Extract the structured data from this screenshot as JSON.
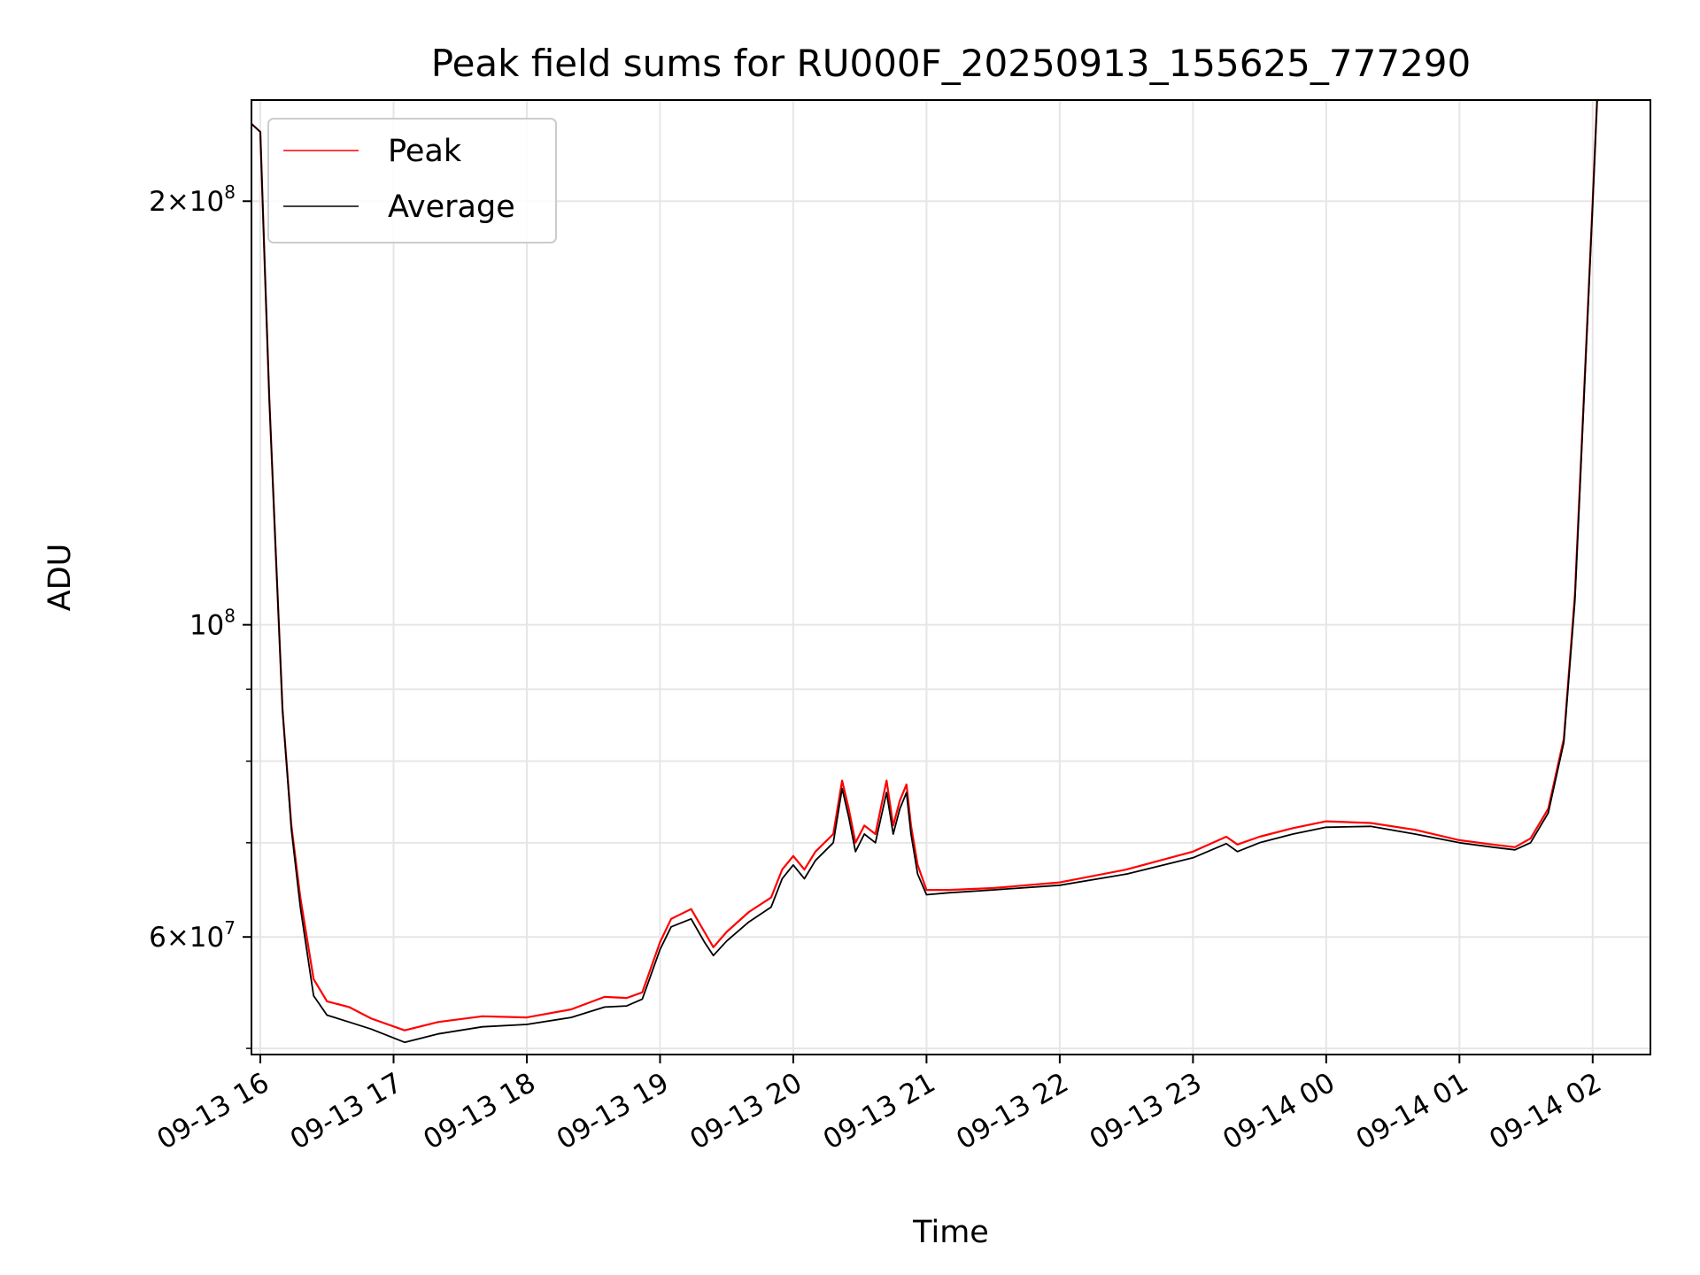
{
  "chart_data": {
    "type": "line",
    "title": "Peak field sums for RU000F_20250913_155625_777290",
    "xlabel": "Time",
    "ylabel": "ADU",
    "yscale": "log",
    "ylim": [
      49500000,
      236000000
    ],
    "xlim": [
      "2025-09-13 15:56",
      "2025-09-14 02:26"
    ],
    "grid": true,
    "legend_position": "upper-left",
    "x_ticks": [
      "09-13 16",
      "09-13 17",
      "09-13 18",
      "09-13 19",
      "09-13 20",
      "09-13 21",
      "09-13 22",
      "09-13 23",
      "09-14 00",
      "09-14 01",
      "09-14 02"
    ],
    "x_tick_times": [
      "2025-09-13 16:00",
      "2025-09-13 17:00",
      "2025-09-13 18:00",
      "2025-09-13 19:00",
      "2025-09-13 20:00",
      "2025-09-13 21:00",
      "2025-09-13 22:00",
      "2025-09-13 23:00",
      "2025-09-14 00:00",
      "2025-09-14 01:00",
      "2025-09-14 02:00"
    ],
    "y_ticks": [
      {
        "value": 60000000,
        "base": "6",
        "exp": "7"
      },
      {
        "value": 100000000,
        "base": "",
        "exp": "8"
      },
      {
        "value": 200000000,
        "base": "2",
        "exp": "8"
      }
    ],
    "y_minor_ticks": [
      50000000,
      70000000,
      80000000,
      90000000
    ],
    "series": [
      {
        "name": "Peak",
        "color": "#ff0000",
        "points": [
          [
            "2025-09-13 15:56",
            227000000
          ],
          [
            "2025-09-13 16:00",
            224000000
          ],
          [
            "2025-09-13 16:02",
            180000000
          ],
          [
            "2025-09-13 16:04",
            145000000
          ],
          [
            "2025-09-13 16:07",
            112000000
          ],
          [
            "2025-09-13 16:10",
            87000000
          ],
          [
            "2025-09-13 16:14",
            72000000
          ],
          [
            "2025-09-13 16:18",
            64000000
          ],
          [
            "2025-09-13 16:24",
            56000000
          ],
          [
            "2025-09-13 16:30",
            54000000
          ],
          [
            "2025-09-13 16:40",
            53500000
          ],
          [
            "2025-09-13 16:50",
            52500000
          ],
          [
            "2025-09-13 17:05",
            51500000
          ],
          [
            "2025-09-13 17:20",
            52200000
          ],
          [
            "2025-09-13 17:40",
            52700000
          ],
          [
            "2025-09-13 18:00",
            52600000
          ],
          [
            "2025-09-13 18:20",
            53300000
          ],
          [
            "2025-09-13 18:35",
            54400000
          ],
          [
            "2025-09-13 18:45",
            54300000
          ],
          [
            "2025-09-13 18:52",
            54800000
          ],
          [
            "2025-09-13 19:00",
            59500000
          ],
          [
            "2025-09-13 19:05",
            61800000
          ],
          [
            "2025-09-13 19:14",
            62800000
          ],
          [
            "2025-09-13 19:20",
            60500000
          ],
          [
            "2025-09-13 19:24",
            59000000
          ],
          [
            "2025-09-13 19:30",
            60500000
          ],
          [
            "2025-09-13 19:40",
            62500000
          ],
          [
            "2025-09-13 19:50",
            64000000
          ],
          [
            "2025-09-13 19:55",
            67000000
          ],
          [
            "2025-09-13 20:00",
            68500000
          ],
          [
            "2025-09-13 20:05",
            67000000
          ],
          [
            "2025-09-13 20:10",
            69000000
          ],
          [
            "2025-09-13 20:18",
            71000000
          ],
          [
            "2025-09-13 20:22",
            77500000
          ],
          [
            "2025-09-13 20:25",
            74000000
          ],
          [
            "2025-09-13 20:28",
            70000000
          ],
          [
            "2025-09-13 20:32",
            72000000
          ],
          [
            "2025-09-13 20:37",
            71000000
          ],
          [
            "2025-09-13 20:42",
            77500000
          ],
          [
            "2025-09-13 20:45",
            72000000
          ],
          [
            "2025-09-13 20:48",
            75000000
          ],
          [
            "2025-09-13 20:51",
            77000000
          ],
          [
            "2025-09-13 20:53",
            72000000
          ],
          [
            "2025-09-13 20:56",
            67500000
          ],
          [
            "2025-09-13 21:00",
            64800000
          ],
          [
            "2025-09-13 21:10",
            64800000
          ],
          [
            "2025-09-13 21:30",
            65000000
          ],
          [
            "2025-09-13 22:00",
            65600000
          ],
          [
            "2025-09-13 22:30",
            67000000
          ],
          [
            "2025-09-13 23:00",
            69000000
          ],
          [
            "2025-09-13 23:15",
            70700000
          ],
          [
            "2025-09-13 23:20",
            69800000
          ],
          [
            "2025-09-13 23:30",
            70700000
          ],
          [
            "2025-09-13 23:45",
            71700000
          ],
          [
            "2025-09-14 00:00",
            72500000
          ],
          [
            "2025-09-14 00:20",
            72300000
          ],
          [
            "2025-09-14 00:40",
            71500000
          ],
          [
            "2025-09-14 01:00",
            70300000
          ],
          [
            "2025-09-14 01:15",
            69800000
          ],
          [
            "2025-09-14 01:25",
            69500000
          ],
          [
            "2025-09-14 01:32",
            70500000
          ],
          [
            "2025-09-14 01:40",
            74000000
          ],
          [
            "2025-09-14 01:47",
            83000000
          ],
          [
            "2025-09-14 01:52",
            105000000
          ],
          [
            "2025-09-14 01:56",
            145000000
          ],
          [
            "2025-09-14 02:00",
            200000000
          ],
          [
            "2025-09-14 02:02",
            236000000
          ]
        ]
      },
      {
        "name": "Average",
        "color": "#000000",
        "points": [
          [
            "2025-09-13 15:56",
            227000000
          ],
          [
            "2025-09-13 16:00",
            224000000
          ],
          [
            "2025-09-13 16:02",
            180000000
          ],
          [
            "2025-09-13 16:04",
            145000000
          ],
          [
            "2025-09-13 16:07",
            112000000
          ],
          [
            "2025-09-13 16:10",
            87000000
          ],
          [
            "2025-09-13 16:14",
            71500000
          ],
          [
            "2025-09-13 16:18",
            63000000
          ],
          [
            "2025-09-13 16:24",
            54500000
          ],
          [
            "2025-09-13 16:30",
            52800000
          ],
          [
            "2025-09-13 16:40",
            52200000
          ],
          [
            "2025-09-13 16:50",
            51600000
          ],
          [
            "2025-09-13 17:05",
            50500000
          ],
          [
            "2025-09-13 17:20",
            51200000
          ],
          [
            "2025-09-13 17:40",
            51800000
          ],
          [
            "2025-09-13 18:00",
            52000000
          ],
          [
            "2025-09-13 18:20",
            52600000
          ],
          [
            "2025-09-13 18:35",
            53500000
          ],
          [
            "2025-09-13 18:45",
            53600000
          ],
          [
            "2025-09-13 18:52",
            54200000
          ],
          [
            "2025-09-13 19:00",
            58800000
          ],
          [
            "2025-09-13 19:05",
            61000000
          ],
          [
            "2025-09-13 19:14",
            61800000
          ],
          [
            "2025-09-13 19:20",
            59500000
          ],
          [
            "2025-09-13 19:24",
            58200000
          ],
          [
            "2025-09-13 19:30",
            59600000
          ],
          [
            "2025-09-13 19:40",
            61500000
          ],
          [
            "2025-09-13 19:50",
            63000000
          ],
          [
            "2025-09-13 19:55",
            66000000
          ],
          [
            "2025-09-13 20:00",
            67500000
          ],
          [
            "2025-09-13 20:05",
            66000000
          ],
          [
            "2025-09-13 20:10",
            68000000
          ],
          [
            "2025-09-13 20:18",
            70000000
          ],
          [
            "2025-09-13 20:22",
            76500000
          ],
          [
            "2025-09-13 20:25",
            73000000
          ],
          [
            "2025-09-13 20:28",
            69000000
          ],
          [
            "2025-09-13 20:32",
            71000000
          ],
          [
            "2025-09-13 20:37",
            70000000
          ],
          [
            "2025-09-13 20:42",
            76000000
          ],
          [
            "2025-09-13 20:45",
            71000000
          ],
          [
            "2025-09-13 20:48",
            74000000
          ],
          [
            "2025-09-13 20:51",
            76000000
          ],
          [
            "2025-09-13 20:53",
            71000000
          ],
          [
            "2025-09-13 20:56",
            66500000
          ],
          [
            "2025-09-13 21:00",
            64300000
          ],
          [
            "2025-09-13 21:10",
            64500000
          ],
          [
            "2025-09-13 21:30",
            64800000
          ],
          [
            "2025-09-13 22:00",
            65300000
          ],
          [
            "2025-09-13 22:30",
            66500000
          ],
          [
            "2025-09-13 23:00",
            68300000
          ],
          [
            "2025-09-13 23:15",
            69900000
          ],
          [
            "2025-09-13 23:20",
            69000000
          ],
          [
            "2025-09-13 23:30",
            70000000
          ],
          [
            "2025-09-13 23:45",
            71000000
          ],
          [
            "2025-09-14 00:00",
            71800000
          ],
          [
            "2025-09-14 00:20",
            71900000
          ],
          [
            "2025-09-14 00:40",
            71000000
          ],
          [
            "2025-09-14 01:00",
            70000000
          ],
          [
            "2025-09-14 01:15",
            69500000
          ],
          [
            "2025-09-14 01:25",
            69200000
          ],
          [
            "2025-09-14 01:32",
            70000000
          ],
          [
            "2025-09-14 01:40",
            73500000
          ],
          [
            "2025-09-14 01:47",
            82500000
          ],
          [
            "2025-09-14 01:52",
            104000000
          ],
          [
            "2025-09-14 01:56",
            144000000
          ],
          [
            "2025-09-14 02:00",
            199000000
          ],
          [
            "2025-09-14 02:02",
            236000000
          ]
        ]
      }
    ]
  }
}
